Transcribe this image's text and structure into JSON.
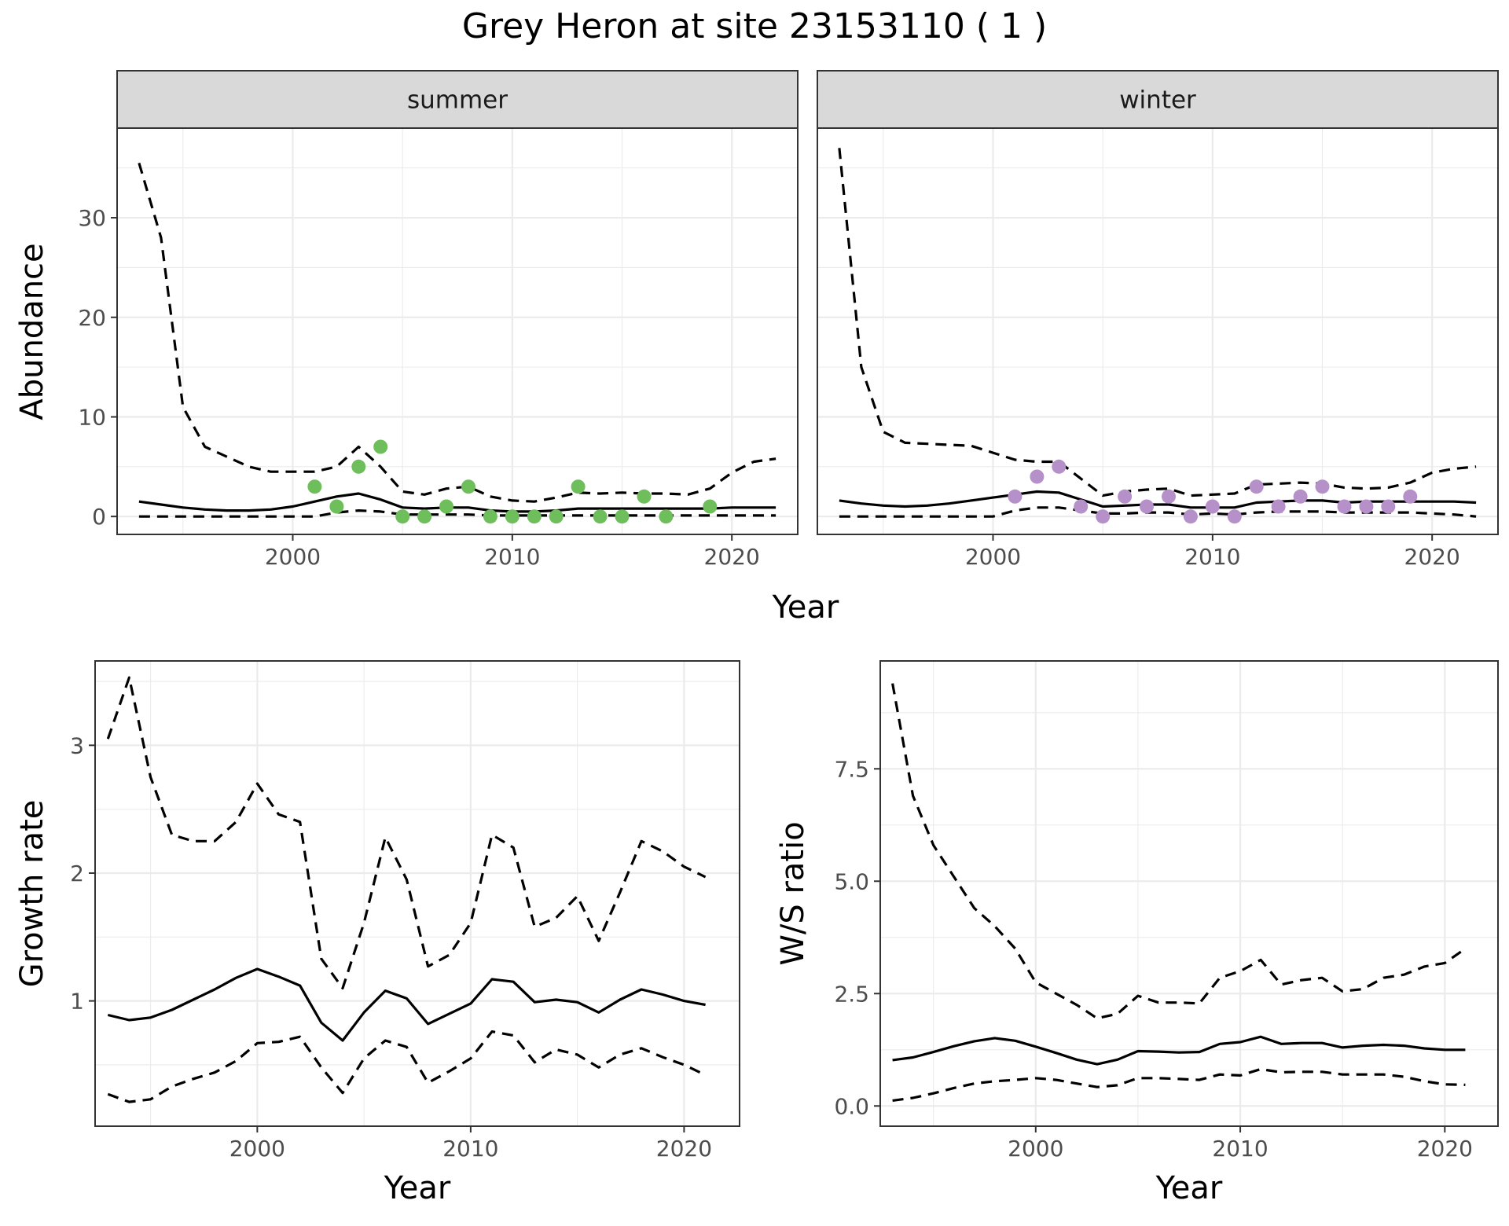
{
  "title": "Grey Heron at site 23153110 ( 1 )",
  "colors": {
    "summer_points": "#6ebe5b",
    "winter_points": "#b690c9",
    "lines": "#000000",
    "strip": "#d9d9d9"
  },
  "chart_data": [
    {
      "type": "line",
      "panel": "summer",
      "strip": "summer",
      "xlabel": "Year",
      "ylabel": "Abundance",
      "xlim": [
        1992,
        2023
      ],
      "ylim": [
        -1.8,
        39
      ],
      "xticks": [
        2000,
        2010,
        2020
      ],
      "yticks": [
        0,
        10,
        20,
        30
      ],
      "x": [
        1993,
        1994,
        1995,
        1996,
        1997,
        1998,
        1999,
        2000,
        2001,
        2002,
        2003,
        2004,
        2005,
        2006,
        2007,
        2008,
        2009,
        2010,
        2011,
        2012,
        2013,
        2014,
        2015,
        2016,
        2017,
        2018,
        2019,
        2020,
        2021,
        2022
      ],
      "mean": [
        1.5,
        1.2,
        0.9,
        0.7,
        0.6,
        0.6,
        0.7,
        1.0,
        1.5,
        2.0,
        2.3,
        1.7,
        0.9,
        0.8,
        0.9,
        0.9,
        0.6,
        0.5,
        0.5,
        0.6,
        0.8,
        0.8,
        0.8,
        0.8,
        0.8,
        0.8,
        0.8,
        0.9,
        0.9,
        0.9
      ],
      "lower": [
        0,
        0,
        0,
        0,
        0,
        0,
        0,
        0,
        0,
        0.4,
        0.6,
        0.5,
        0.2,
        0.2,
        0.2,
        0.2,
        0.1,
        0.1,
        0.1,
        0.1,
        0.1,
        0.1,
        0.1,
        0.1,
        0.1,
        0.1,
        0.1,
        0.1,
        0.1,
        0.1
      ],
      "upper": [
        35.5,
        28,
        11,
        7,
        6,
        5,
        4.5,
        4.5,
        4.5,
        5,
        7,
        5,
        2.5,
        2.2,
        2.8,
        3,
        2,
        1.6,
        1.5,
        1.9,
        2.4,
        2.3,
        2.4,
        2.3,
        2.3,
        2.2,
        2.8,
        4.4,
        5.5,
        5.8
      ],
      "points": {
        "x": [
          2001,
          2002,
          2003,
          2004,
          2005,
          2006,
          2007,
          2008,
          2009,
          2010,
          2011,
          2012,
          2013,
          2014,
          2015,
          2016,
          2017,
          2019
        ],
        "y": [
          3,
          1,
          5,
          7,
          0,
          0,
          1,
          3,
          0,
          0,
          0,
          0,
          3,
          0,
          0,
          2,
          0,
          1
        ]
      }
    },
    {
      "type": "line",
      "panel": "winter",
      "strip": "winter",
      "xlabel": "Year",
      "ylabel": "Abundance",
      "xlim": [
        1992,
        2023
      ],
      "ylim": [
        -1.8,
        39
      ],
      "xticks": [
        2000,
        2010,
        2020
      ],
      "yticks": [
        0,
        10,
        20,
        30
      ],
      "x": [
        1993,
        1994,
        1995,
        1996,
        1997,
        1998,
        1999,
        2000,
        2001,
        2002,
        2003,
        2004,
        2005,
        2006,
        2007,
        2008,
        2009,
        2010,
        2011,
        2012,
        2013,
        2014,
        2015,
        2016,
        2017,
        2018,
        2019,
        2020,
        2021,
        2022
      ],
      "mean": [
        1.6,
        1.3,
        1.1,
        1.0,
        1.1,
        1.3,
        1.6,
        1.9,
        2.2,
        2.5,
        2.4,
        1.7,
        1.0,
        1.1,
        1.2,
        1.2,
        0.9,
        0.9,
        0.9,
        1.4,
        1.5,
        1.6,
        1.6,
        1.4,
        1.5,
        1.5,
        1.5,
        1.5,
        1.5,
        1.4
      ],
      "lower": [
        0,
        0,
        0,
        0,
        0,
        0,
        0,
        0,
        0.6,
        0.9,
        0.9,
        0.6,
        0.3,
        0.3,
        0.4,
        0.4,
        0.2,
        0.3,
        0.2,
        0.4,
        0.5,
        0.5,
        0.5,
        0.4,
        0.4,
        0.4,
        0.4,
        0.3,
        0.2,
        0
      ],
      "upper": [
        37,
        15,
        8.5,
        7.4,
        7.3,
        7.2,
        7.1,
        6.4,
        5.7,
        5.5,
        5.5,
        3.8,
        2.1,
        2.5,
        2.7,
        2.8,
        2.1,
        2.2,
        2.3,
        3.2,
        3.3,
        3.4,
        3.3,
        2.9,
        2.8,
        2.9,
        3.4,
        4.4,
        4.8,
        5.0
      ],
      "points": {
        "x": [
          2001,
          2002,
          2003,
          2004,
          2005,
          2006,
          2007,
          2008,
          2009,
          2010,
          2011,
          2012,
          2013,
          2014,
          2015,
          2016,
          2017,
          2018,
          2019
        ],
        "y": [
          2,
          4,
          5,
          1,
          0,
          2,
          1,
          2,
          0,
          1,
          0,
          3,
          1,
          2,
          3,
          1,
          1,
          1,
          2
        ]
      }
    },
    {
      "type": "line",
      "panel": "growth",
      "xlabel": "Year",
      "ylabel": "Growth rate",
      "xlim": [
        1992.4,
        2022.6
      ],
      "ylim": [
        0.02,
        3.66
      ],
      "xticks": [
        2000,
        2010,
        2020
      ],
      "yticks": [
        1,
        2,
        3
      ],
      "x": [
        1993,
        1994,
        1995,
        1996,
        1997,
        1998,
        1999,
        2000,
        2001,
        2002,
        2003,
        2004,
        2005,
        2006,
        2007,
        2008,
        2009,
        2010,
        2011,
        2012,
        2013,
        2014,
        2015,
        2016,
        2017,
        2018,
        2019,
        2020,
        2021
      ],
      "mean": [
        0.89,
        0.85,
        0.87,
        0.93,
        1.01,
        1.09,
        1.18,
        1.25,
        1.19,
        1.12,
        0.83,
        0.69,
        0.91,
        1.08,
        1.02,
        0.82,
        0.9,
        0.98,
        1.17,
        1.15,
        0.99,
        1.01,
        0.99,
        0.91,
        1.01,
        1.09,
        1.05,
        1.0,
        0.97
      ],
      "lower": [
        0.27,
        0.21,
        0.23,
        0.33,
        0.39,
        0.44,
        0.53,
        0.67,
        0.68,
        0.72,
        0.48,
        0.28,
        0.55,
        0.69,
        0.64,
        0.36,
        0.45,
        0.55,
        0.76,
        0.73,
        0.52,
        0.62,
        0.58,
        0.48,
        0.58,
        0.63,
        0.56,
        0.5,
        0.42
      ],
      "upper": [
        3.05,
        3.53,
        2.75,
        2.3,
        2.25,
        2.25,
        2.4,
        2.7,
        2.46,
        2.4,
        1.33,
        1.1,
        1.61,
        2.28,
        1.95,
        1.27,
        1.36,
        1.61,
        2.3,
        2.2,
        1.58,
        1.65,
        1.82,
        1.47,
        1.85,
        2.25,
        2.17,
        2.05,
        1.97
      ]
    },
    {
      "type": "line",
      "panel": "ws_ratio",
      "xlabel": "Year",
      "ylabel": "W/S ratio",
      "xlim": [
        1992.4,
        2022.6
      ],
      "ylim": [
        -0.45,
        9.9
      ],
      "xticks": [
        2000,
        2010,
        2020
      ],
      "yticks": [
        0.0,
        2.5,
        5.0,
        7.5
      ],
      "ytick_labels": [
        "0.0",
        "2.5",
        "5.0",
        "7.5"
      ],
      "x": [
        1993,
        1994,
        1995,
        1996,
        1997,
        1998,
        1999,
        2000,
        2001,
        2002,
        2003,
        2004,
        2005,
        2006,
        2007,
        2008,
        2009,
        2010,
        2011,
        2012,
        2013,
        2014,
        2015,
        2016,
        2017,
        2018,
        2019,
        2020,
        2021
      ],
      "mean": [
        1.02,
        1.08,
        1.2,
        1.33,
        1.44,
        1.51,
        1.45,
        1.32,
        1.18,
        1.03,
        0.93,
        1.03,
        1.22,
        1.21,
        1.19,
        1.2,
        1.38,
        1.42,
        1.54,
        1.38,
        1.4,
        1.4,
        1.3,
        1.34,
        1.36,
        1.34,
        1.28,
        1.25,
        1.25
      ],
      "lower": [
        0.12,
        0.18,
        0.28,
        0.4,
        0.5,
        0.55,
        0.58,
        0.62,
        0.58,
        0.5,
        0.42,
        0.46,
        0.62,
        0.62,
        0.6,
        0.58,
        0.7,
        0.68,
        0.82,
        0.75,
        0.76,
        0.76,
        0.7,
        0.7,
        0.7,
        0.65,
        0.55,
        0.48,
        0.47
      ],
      "upper": [
        9.4,
        6.9,
        5.8,
        5.1,
        4.4,
        4.0,
        3.5,
        2.75,
        2.5,
        2.25,
        1.95,
        2.05,
        2.45,
        2.3,
        2.3,
        2.28,
        2.85,
        3.0,
        3.25,
        2.7,
        2.8,
        2.85,
        2.55,
        2.6,
        2.85,
        2.92,
        3.1,
        3.18,
        3.5
      ]
    }
  ]
}
